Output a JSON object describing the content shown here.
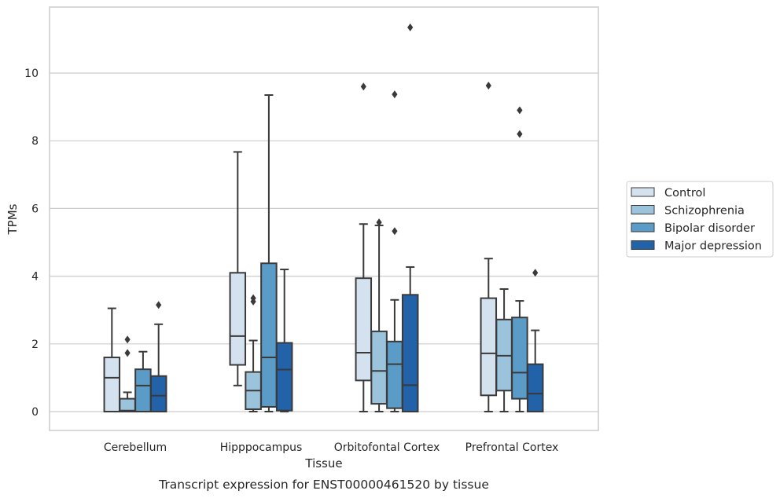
{
  "chart_data": {
    "type": "box",
    "title": "Transcript expression for ENST00000461520 by tissue",
    "xlabel": "Tissue",
    "ylabel": "TPMs",
    "ylim": [
      -0.55,
      11.95
    ],
    "yticks": [
      0,
      2,
      4,
      6,
      8,
      10
    ],
    "grid": "horizontal",
    "legend_position": "right",
    "categories": [
      "Cerebellum",
      "Hipppocampus",
      "Orbitofontal Cortex",
      "Prefrontal Cortex"
    ],
    "series": [
      {
        "name": "Control",
        "color": "#d4e2f0",
        "boxes": [
          {
            "q1": 0.0,
            "median": 1.0,
            "q3": 1.6,
            "whisker_low": 0.0,
            "whisker_high": 3.05,
            "outliers": []
          },
          {
            "q1": 1.38,
            "median": 2.23,
            "q3": 4.1,
            "whisker_low": 0.77,
            "whisker_high": 7.67,
            "outliers": []
          },
          {
            "q1": 0.92,
            "median": 1.74,
            "q3": 3.94,
            "whisker_low": 0.0,
            "whisker_high": 5.54,
            "outliers": [
              9.6
            ]
          },
          {
            "q1": 0.48,
            "median": 1.72,
            "q3": 3.35,
            "whisker_low": 0.0,
            "whisker_high": 4.52,
            "outliers": [
              9.63
            ]
          }
        ]
      },
      {
        "name": "Schizophrenia",
        "color": "#9cc3dc",
        "boxes": [
          {
            "q1": 0.0,
            "median": 0.03,
            "q3": 0.38,
            "whisker_low": 0.0,
            "whisker_high": 0.57,
            "outliers": [
              1.73,
              2.13
            ]
          },
          {
            "q1": 0.07,
            "median": 0.62,
            "q3": 1.17,
            "whisker_low": 0.0,
            "whisker_high": 2.1,
            "outliers": [
              3.25,
              3.35
            ]
          },
          {
            "q1": 0.23,
            "median": 1.2,
            "q3": 2.37,
            "whisker_low": 0.0,
            "whisker_high": 5.5,
            "outliers": [
              5.59
            ]
          },
          {
            "q1": 0.62,
            "median": 1.65,
            "q3": 2.72,
            "whisker_low": 0.0,
            "whisker_high": 3.62,
            "outliers": []
          }
        ]
      },
      {
        "name": "Bipolar disorder",
        "color": "#5b9bc7",
        "boxes": [
          {
            "q1": 0.0,
            "median": 0.77,
            "q3": 1.25,
            "whisker_low": 0.0,
            "whisker_high": 1.77,
            "outliers": []
          },
          {
            "q1": 0.14,
            "median": 1.6,
            "q3": 4.38,
            "whisker_low": 0.0,
            "whisker_high": 9.35,
            "outliers": []
          },
          {
            "q1": 0.1,
            "median": 1.4,
            "q3": 2.07,
            "whisker_low": 0.0,
            "whisker_high": 3.3,
            "outliers": [
              5.33,
              9.37
            ]
          },
          {
            "q1": 0.38,
            "median": 1.15,
            "q3": 2.78,
            "whisker_low": 0.0,
            "whisker_high": 3.27,
            "outliers": [
              8.2,
              8.9
            ]
          }
        ]
      },
      {
        "name": "Major depression",
        "color": "#2262a8",
        "boxes": [
          {
            "q1": 0.0,
            "median": 0.47,
            "q3": 1.05,
            "whisker_low": 0.0,
            "whisker_high": 2.58,
            "outliers": [
              3.15
            ]
          },
          {
            "q1": 0.03,
            "median": 1.24,
            "q3": 2.03,
            "whisker_low": 0.0,
            "whisker_high": 4.2,
            "outliers": []
          },
          {
            "q1": 0.0,
            "median": 0.78,
            "q3": 3.45,
            "whisker_low": 0.0,
            "whisker_high": 4.27,
            "outliers": [
              11.35
            ]
          },
          {
            "q1": 0.0,
            "median": 0.53,
            "q3": 1.4,
            "whisker_low": 0.0,
            "whisker_high": 2.4,
            "outliers": [
              4.1
            ]
          }
        ]
      }
    ]
  },
  "colors": {
    "box_edge": "#3a3a3a",
    "grid": "#cccccc",
    "frame": "#cccccc",
    "text": "#262626"
  }
}
